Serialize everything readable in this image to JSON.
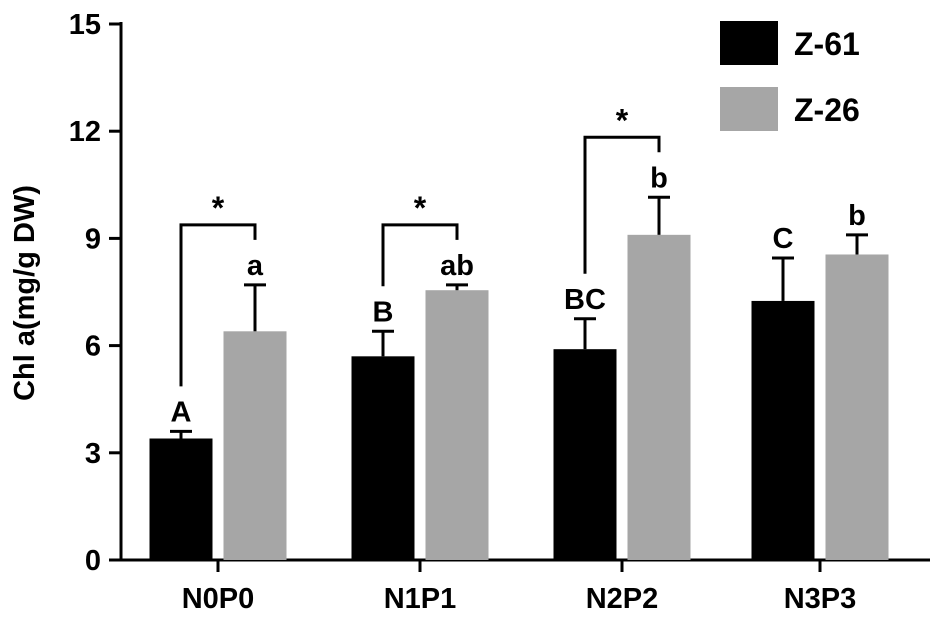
{
  "chart_data": {
    "type": "bar",
    "title": "",
    "xlabel": "",
    "ylabel": "Chl a(mg/g DW)",
    "ylim": [
      0,
      15
    ],
    "yticks": [
      0,
      3,
      6,
      9,
      12,
      15
    ],
    "categories": [
      "N0P0",
      "N1P1",
      "N2P2",
      "N3P3"
    ],
    "series": [
      {
        "name": "Z-61",
        "color": "#000000",
        "values": [
          3.4,
          5.7,
          5.9,
          7.25
        ],
        "errors": [
          0.2,
          0.7,
          0.85,
          1.2
        ],
        "letters": [
          "A",
          "B",
          "BC",
          "C"
        ]
      },
      {
        "name": "Z-26",
        "color": "#a6a6a6",
        "values": [
          6.4,
          7.55,
          9.1,
          8.55
        ],
        "errors": [
          1.3,
          0.15,
          1.05,
          0.55
        ],
        "letters": [
          "a",
          "ab",
          "b",
          "b"
        ]
      }
    ],
    "significance": [
      {
        "category": "N0P0",
        "label": "*"
      },
      {
        "category": "N1P1",
        "label": "*"
      },
      {
        "category": "N2P2",
        "label": "*"
      }
    ],
    "legend_position": "top-right",
    "grid": false
  }
}
